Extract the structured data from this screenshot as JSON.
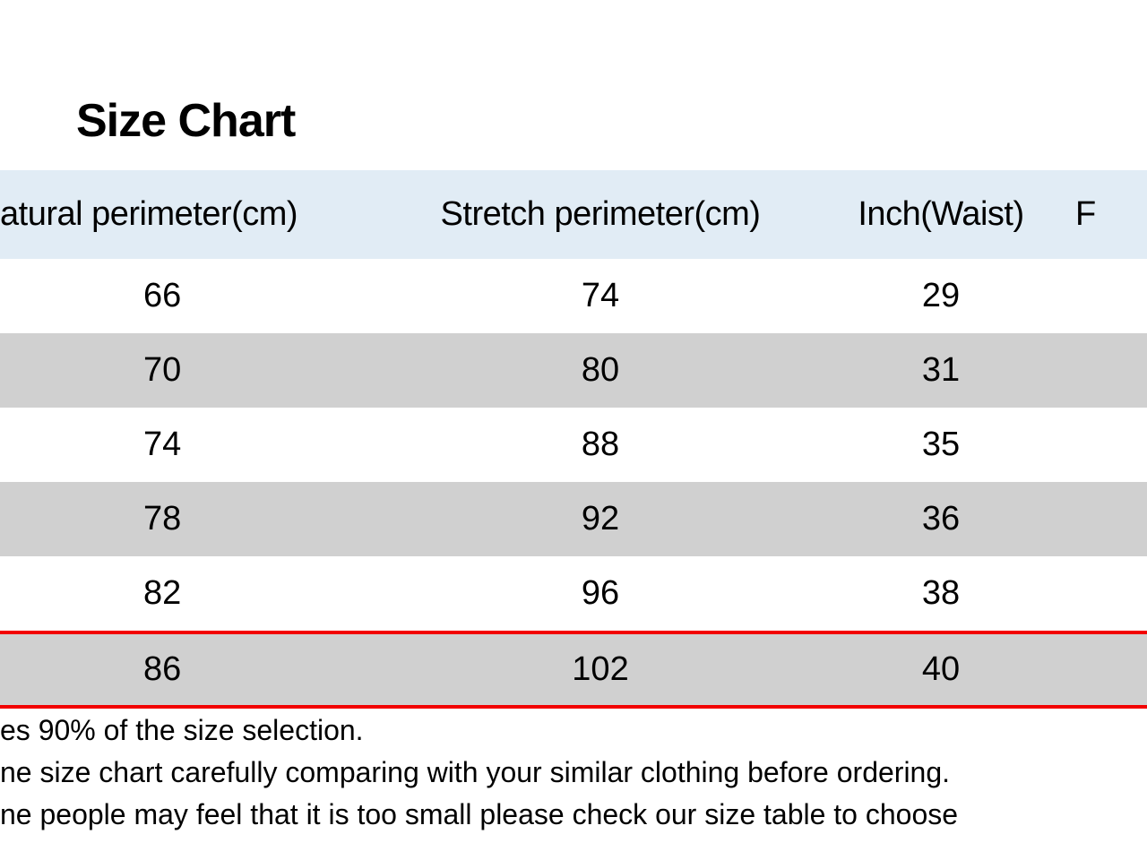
{
  "title": "Size Chart",
  "table": {
    "columns": [
      "atural perimeter(cm)",
      "Stretch perimeter(cm)",
      "Inch(Waist)",
      "F"
    ],
    "rows": [
      [
        "66",
        "74",
        "29",
        ""
      ],
      [
        "70",
        "80",
        "31",
        ""
      ],
      [
        "74",
        "88",
        "35",
        ""
      ],
      [
        "78",
        "92",
        "36",
        ""
      ],
      [
        "82",
        "96",
        "38",
        ""
      ],
      [
        "86",
        "102",
        "40",
        ""
      ]
    ],
    "header_bg_color": "#e1ecf5",
    "row_even_bg": "#ffffff",
    "row_odd_bg": "#d0d0d0",
    "highlight_border_color": "#f20000",
    "highlight_row_index": 5,
    "text_color": "#000000",
    "header_fontsize": 38,
    "cell_fontsize": 38,
    "title_fontsize": 52
  },
  "footer": {
    "line1": "es 90% of the size selection.",
    "line2": "ne size chart carefully comparing with your similar clothing before ordering.",
    "line3": "ne people may feel that it is too small please check our size table to choose"
  }
}
